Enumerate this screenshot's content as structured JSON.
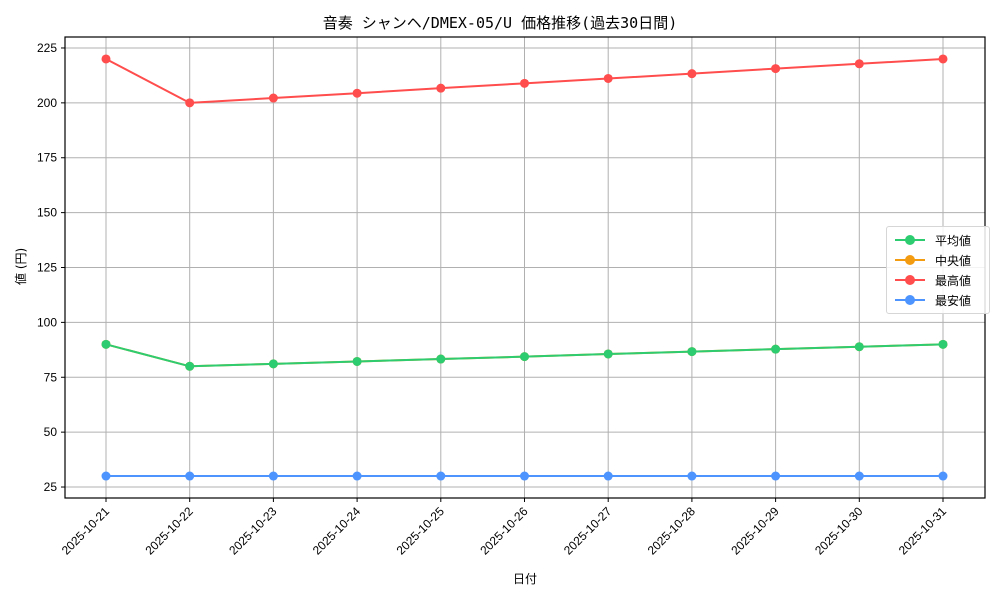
{
  "chart_data": {
    "type": "line",
    "title": "音奏 シャンヘ/DMEX-05/U 価格推移(過去30日間)",
    "xlabel": "日付",
    "ylabel": "値 (円)",
    "x": [
      "2025-10-21",
      "2025-10-22",
      "2025-10-23",
      "2025-10-24",
      "2025-10-25",
      "2025-10-26",
      "2025-10-27",
      "2025-10-28",
      "2025-10-29",
      "2025-10-30",
      "2025-10-31"
    ],
    "ylim": [
      20,
      230
    ],
    "yticks": [
      25,
      50,
      75,
      100,
      125,
      150,
      175,
      200,
      225
    ],
    "grid": true,
    "legend_position": "center right",
    "series": [
      {
        "name": "平均値",
        "color": "#2ecc71",
        "values": [
          90,
          80,
          81.1,
          82.2,
          83.3,
          84.4,
          85.6,
          86.7,
          87.8,
          88.9,
          90
        ]
      },
      {
        "name": "中央値",
        "color": "#f39c12",
        "values": [
          90,
          80,
          81.1,
          82.2,
          83.3,
          84.4,
          85.6,
          86.7,
          87.8,
          88.9,
          90
        ]
      },
      {
        "name": "最高値",
        "color": "#ff4c4c",
        "values": [
          220,
          200,
          202.2,
          204.4,
          206.7,
          208.9,
          211.1,
          213.3,
          215.6,
          217.8,
          220
        ]
      },
      {
        "name": "最安値",
        "color": "#4d94ff",
        "values": [
          30,
          30,
          30,
          30,
          30,
          30,
          30,
          30,
          30,
          30,
          30
        ]
      }
    ]
  }
}
